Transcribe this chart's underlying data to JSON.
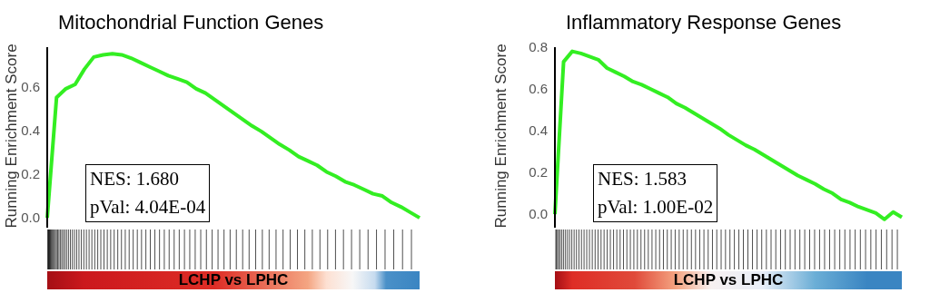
{
  "chart_data": [
    {
      "type": "line",
      "title": "Mitochondrial Function Genes",
      "ylabel": "Running Enrichment Score",
      "annotations": [
        "NES: 1.680",
        "pVal: 4.04E-04",
        "LCHP vs LPHC"
      ],
      "categories": [
        null,
        null,
        null,
        null,
        null,
        null,
        null,
        null,
        null,
        null,
        null,
        null,
        null,
        null,
        null,
        null,
        null,
        null,
        null,
        null,
        null,
        null,
        null,
        null,
        null,
        null,
        null,
        null,
        null,
        null,
        null,
        null,
        null,
        null,
        null,
        null,
        null,
        null,
        null,
        null,
        null
      ],
      "ylim": [
        -0.045,
        0.78
      ],
      "yticks": [
        {
          "value": 0,
          "label": "0.0"
        },
        {
          "value": 0.2,
          "label": "0.2"
        },
        {
          "value": 0.4,
          "label": "0.4"
        },
        {
          "value": 0.6,
          "label": "0.6"
        }
      ],
      "tick_labels": "y",
      "legend": false,
      "series": [
        {
          "color": "#33ee22",
          "values": [
            0,
            0.55,
            0.59,
            0.61,
            0.68,
            0.735,
            0.745,
            0.75,
            0.745,
            0.73,
            0.71,
            0.69,
            0.67,
            0.65,
            0.635,
            0.62,
            0.59,
            0.57,
            0.54,
            0.51,
            0.48,
            0.45,
            0.42,
            0.395,
            0.365,
            0.335,
            0.31,
            0.28,
            0.26,
            0.24,
            0.21,
            0.19,
            0.165,
            0.15,
            0.13,
            0.11,
            0.1,
            0.07,
            0.05,
            0.025,
            0
          ]
        }
      ]
    },
    {
      "type": "line",
      "title": "Inflammatory Response Genes",
      "ylabel": "Running Enrichment Score",
      "annotations": [
        "NES: 1.583",
        "pVal: 1.00E-02",
        "LCHP vs LPHC"
      ],
      "categories": [
        null,
        null,
        null,
        null,
        null,
        null,
        null,
        null,
        null,
        null,
        null,
        null,
        null,
        null,
        null,
        null,
        null,
        null,
        null,
        null,
        null,
        null,
        null,
        null,
        null,
        null,
        null,
        null,
        null,
        null,
        null,
        null,
        null,
        null,
        null,
        null,
        null,
        null,
        null,
        null,
        null
      ],
      "ylim": [
        -0.065,
        0.8
      ],
      "yticks": [
        {
          "value": 0,
          "label": "0.0"
        },
        {
          "value": 0.2,
          "label": "0.2"
        },
        {
          "value": 0.4,
          "label": "0.4"
        },
        {
          "value": 0.6,
          "label": "0.6"
        },
        {
          "value": 0.8,
          "label": "0.8"
        }
      ],
      "tick_labels": "y",
      "legend": false,
      "series": [
        {
          "color": "#33ee22",
          "values": [
            0,
            0.73,
            0.78,
            0.77,
            0.755,
            0.74,
            0.7,
            0.68,
            0.66,
            0.635,
            0.62,
            0.6,
            0.58,
            0.56,
            0.53,
            0.51,
            0.485,
            0.46,
            0.435,
            0.41,
            0.38,
            0.355,
            0.33,
            0.31,
            0.285,
            0.26,
            0.235,
            0.21,
            0.185,
            0.165,
            0.145,
            0.12,
            0.1,
            0.07,
            0.055,
            0.035,
            0.02,
            0.005,
            -0.025,
            0.01,
            -0.015
          ]
        }
      ]
    }
  ]
}
